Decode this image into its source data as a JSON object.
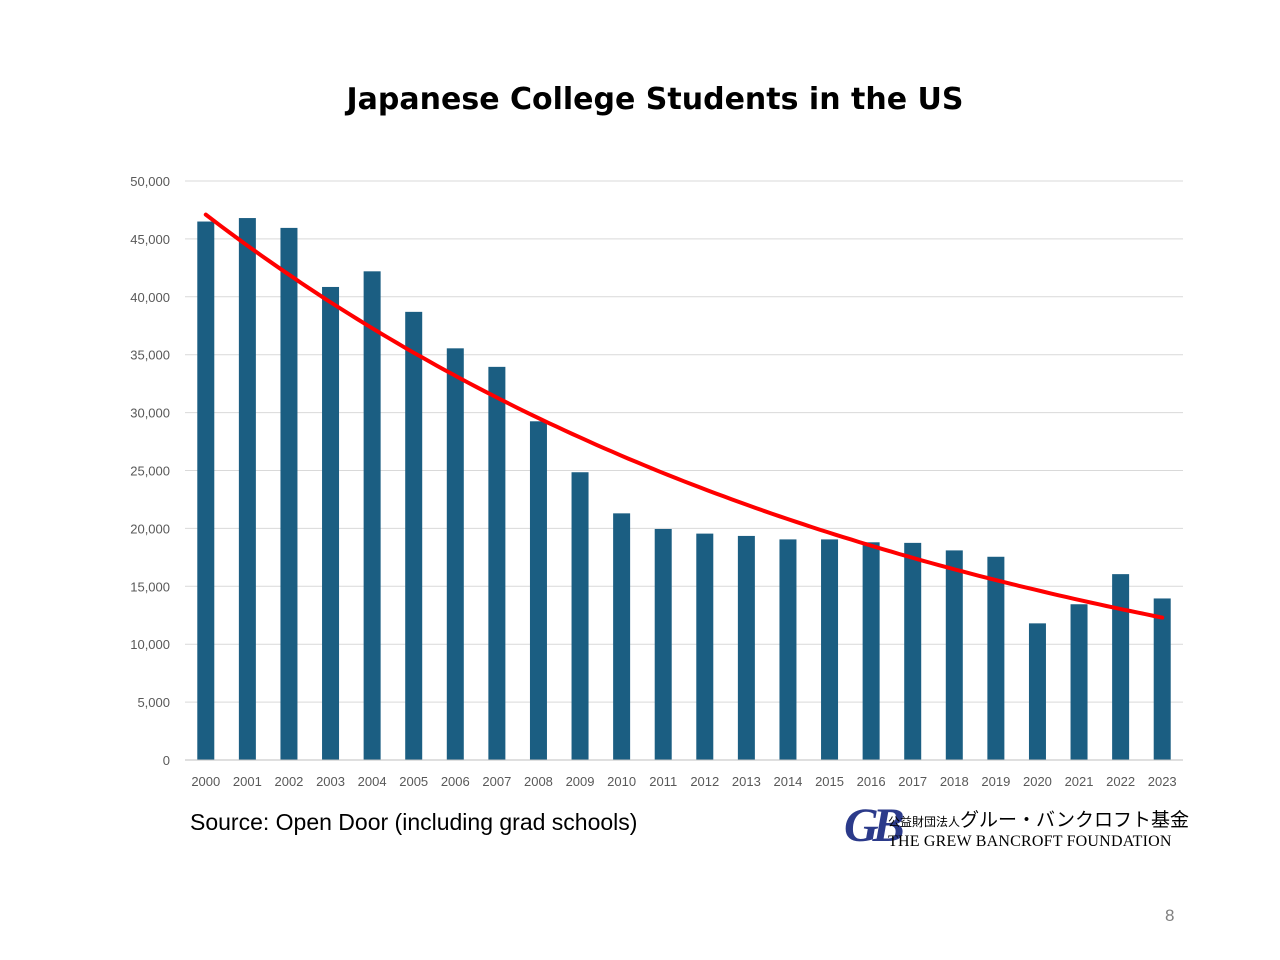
{
  "chart_data": {
    "type": "bar",
    "title": "Japanese College Students in the US",
    "categories": [
      "2000",
      "2001",
      "2002",
      "2003",
      "2004",
      "2005",
      "2006",
      "2007",
      "2008",
      "2009",
      "2010",
      "2011",
      "2012",
      "2013",
      "2014",
      "2015",
      "2016",
      "2017",
      "2018",
      "2019",
      "2020",
      "2021",
      "2022",
      "2023"
    ],
    "series": [
      {
        "values": [
          46500,
          46800,
          45950,
          40850,
          42200,
          38700,
          35550,
          33950,
          29250,
          24850,
          21300,
          19950,
          19550,
          19350,
          19050,
          19050,
          18800,
          18750,
          18100,
          17550,
          11800,
          13450,
          16050,
          13950
        ],
        "color": "#1b5e82"
      }
    ],
    "trendline": {
      "type": "exponential",
      "start": 47100,
      "end": 12300,
      "color": "#ff0000"
    },
    "yticks": [
      "0",
      "5,000",
      "10,000",
      "15,000",
      "20,000",
      "25,000",
      "30,000",
      "35,000",
      "40,000",
      "45,000",
      "50,000"
    ],
    "ylim": [
      0,
      50000
    ],
    "xlabel": "",
    "ylabel": "",
    "grid": true,
    "legend": "none"
  },
  "source": "Source: Open Door (including grad schools)",
  "logo": {
    "mark": "GB",
    "jp_small": "公益財団法人",
    "jp_large": "グルー・バンクロフト基金",
    "en": "THE GREW BANCROFT FOUNDATION"
  },
  "page_number": "8"
}
